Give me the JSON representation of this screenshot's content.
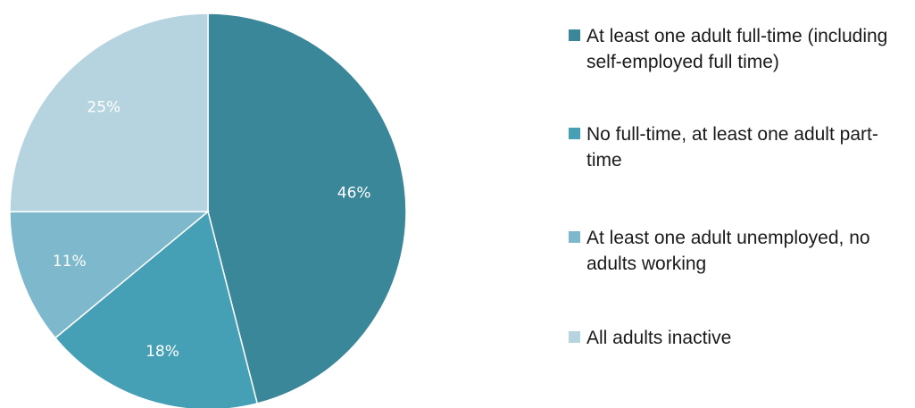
{
  "chart_data": {
    "type": "pie",
    "slices": [
      {
        "label": "At least one adult full-time (including self-employed full time)",
        "value": 46,
        "display": "46%",
        "color": "#3a8799"
      },
      {
        "label": "No full-time, at least one adult part-time",
        "value": 18,
        "display": "18%",
        "color": "#45a0b6"
      },
      {
        "label": "At least one adult unemployed, no adults working",
        "value": 11,
        "display": "11%",
        "color": "#7db8cc"
      },
      {
        "label": "All adults inactive",
        "value": 25,
        "display": "25%",
        "color": "#b6d4e0"
      }
    ],
    "legend_position": "right",
    "start_angle_deg": 0,
    "direction": "clockwise"
  }
}
